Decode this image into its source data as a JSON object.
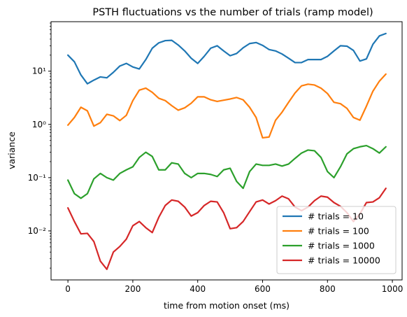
{
  "chart_data": {
    "type": "line",
    "title": "PSTH fluctuations vs the number of trials (ramp model)",
    "xlabel": "time from motion onset (ms)",
    "ylabel": "variance",
    "xlim": [
      -52,
      1030
    ],
    "ylim": [
      0.0012,
      85
    ],
    "yscale": "log",
    "x_ticks": [
      0,
      200,
      400,
      600,
      800,
      1000
    ],
    "x_tick_labels": [
      "0",
      "200",
      "400",
      "600",
      "800",
      "1000"
    ],
    "y_ticks": [
      0.01,
      0.1,
      1,
      10
    ],
    "y_tick_labels": [
      "10⁻²",
      "10⁻¹",
      "10⁰",
      "10¹"
    ],
    "grid": false,
    "legend_position": "lower right",
    "x": [
      0,
      20,
      40,
      60,
      80,
      100,
      120,
      140,
      160,
      180,
      200,
      220,
      240,
      260,
      280,
      300,
      320,
      340,
      360,
      380,
      400,
      420,
      440,
      460,
      480,
      500,
      520,
      540,
      560,
      580,
      600,
      620,
      640,
      660,
      680,
      700,
      720,
      740,
      760,
      780,
      800,
      820,
      840,
      860,
      880,
      900,
      920,
      940,
      960,
      980
    ],
    "series": [
      {
        "name": "# trials = 10",
        "color": "#1f77b4",
        "values": [
          20.0,
          15.0,
          8.5,
          5.8,
          6.8,
          7.8,
          7.5,
          9.5,
          12.5,
          14.0,
          12.0,
          11.0,
          16.5,
          27.0,
          34.0,
          37.5,
          38.0,
          31.0,
          24.0,
          17.5,
          14.0,
          19.0,
          27.0,
          30.0,
          24.0,
          19.5,
          21.5,
          27.5,
          33.0,
          34.5,
          30.5,
          25.5,
          24.0,
          21.0,
          17.5,
          14.5,
          14.5,
          16.5,
          16.5,
          16.5,
          19.0,
          24.0,
          30.0,
          29.5,
          24.5,
          15.5,
          17.0,
          32.0,
          46.0,
          51.0
        ]
      },
      {
        "name": "# trials = 100",
        "color": "#ff7f0e",
        "values": [
          0.97,
          1.35,
          2.1,
          1.8,
          0.93,
          1.08,
          1.55,
          1.45,
          1.18,
          1.48,
          2.8,
          4.4,
          4.8,
          4.0,
          3.1,
          2.8,
          2.25,
          1.85,
          2.05,
          2.5,
          3.3,
          3.3,
          2.9,
          2.7,
          2.85,
          3.0,
          3.2,
          2.9,
          2.1,
          1.35,
          0.56,
          0.58,
          1.2,
          1.7,
          2.6,
          3.9,
          5.3,
          5.7,
          5.5,
          4.8,
          3.8,
          2.6,
          2.45,
          2.0,
          1.35,
          1.2,
          2.2,
          4.2,
          6.5,
          8.8
        ]
      },
      {
        "name": "# trials = 1000",
        "color": "#2ca02c",
        "values": [
          0.09,
          0.05,
          0.041,
          0.05,
          0.095,
          0.12,
          0.1,
          0.09,
          0.12,
          0.14,
          0.16,
          0.24,
          0.3,
          0.25,
          0.14,
          0.14,
          0.19,
          0.18,
          0.12,
          0.1,
          0.12,
          0.12,
          0.115,
          0.105,
          0.14,
          0.15,
          0.085,
          0.063,
          0.13,
          0.18,
          0.17,
          0.17,
          0.18,
          0.165,
          0.18,
          0.23,
          0.29,
          0.33,
          0.32,
          0.24,
          0.13,
          0.1,
          0.16,
          0.28,
          0.35,
          0.38,
          0.4,
          0.35,
          0.29,
          0.38
        ]
      },
      {
        "name": "# trials = 10000",
        "color": "#d62728",
        "values": [
          0.027,
          0.015,
          0.0088,
          0.009,
          0.0063,
          0.0027,
          0.0019,
          0.004,
          0.0051,
          0.007,
          0.0125,
          0.015,
          0.0115,
          0.0093,
          0.018,
          0.03,
          0.038,
          0.036,
          0.028,
          0.019,
          0.022,
          0.03,
          0.036,
          0.035,
          0.022,
          0.011,
          0.0115,
          0.015,
          0.023,
          0.035,
          0.038,
          0.032,
          0.037,
          0.045,
          0.04,
          0.028,
          0.024,
          0.028,
          0.037,
          0.045,
          0.043,
          0.034,
          0.029,
          0.022,
          0.015,
          0.021,
          0.034,
          0.035,
          0.042,
          0.063
        ]
      }
    ]
  }
}
